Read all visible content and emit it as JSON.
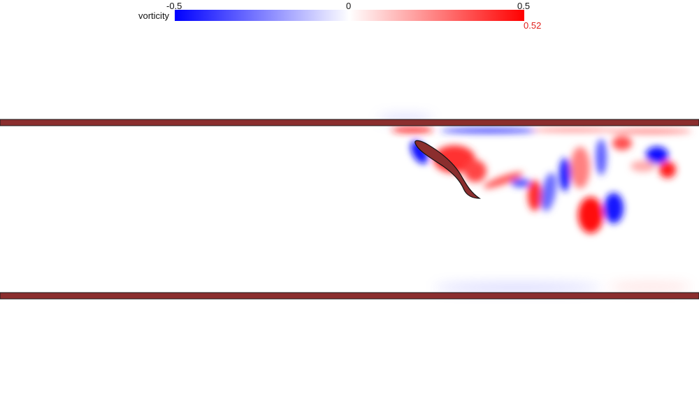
{
  "colorbar": {
    "title": "vorticity",
    "tick_min": "-0.5",
    "tick_mid": "0",
    "tick_max": "0.5",
    "readout": "0.52",
    "color_negative": "#0000ff",
    "color_zero": "#ffffff",
    "color_positive": "#ff0000",
    "readout_color": "#e0201c"
  },
  "scene": {
    "wall_color": "#8b2e2e",
    "body_color": "#8b2e2e"
  }
}
